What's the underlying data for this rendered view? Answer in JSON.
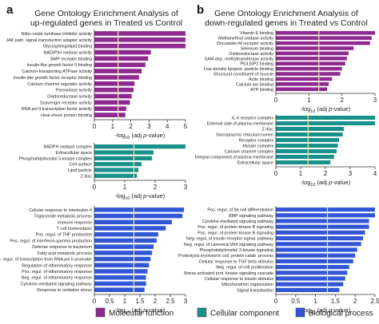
{
  "colors": {
    "molecular": "#8e2a8f",
    "cellular": "#18918a",
    "biological": "#3257d6",
    "threshold": "#f1e6a6"
  },
  "panel_labels": [
    "a",
    "b"
  ],
  "titles": {
    "a": [
      "Gene Ontology Enrichment Analysis of",
      "up-regulated genes in Treated vs Control"
    ],
    "b": [
      "Gene Ontology Enrichment Analysis of",
      "down-regulated genes in Treated vs Control"
    ]
  },
  "xlabel_text": "-log",
  "xlabel_sub": "10",
  "xlabel_tail": " (adj ",
  "xlabel_p": "p",
  "xlabel_end": "-value)",
  "legend": [
    {
      "label": "Molecular function",
      "color": "#8e2a8f"
    },
    {
      "label": "Cellular component",
      "color": "#18918a"
    },
    {
      "label": "Biological process",
      "color": "#3257d6"
    }
  ],
  "chart_data": [
    {
      "type": "bar",
      "panel": "a",
      "group": "Molecular function",
      "color": "#8e2a8f",
      "xlim": [
        0,
        5
      ],
      "ticks": [
        0,
        1,
        2,
        3,
        4,
        5
      ],
      "threshold": 1.3,
      "categories": [
        "Nitric-oxide synthase inhibitor activity",
        "JAK path. signal transduction adaptor activity",
        "Glycosphingolipid binding",
        "NAD(P)H oxidase activity",
        "BMP receptor binding",
        "Insulin-like growth factor II binding",
        "Calcium-transporting ATPase activity",
        "Insulin-like growth factor receptor binding",
        "Calcium channel regulator activity",
        "Peroxidase activity",
        "Oxidoreductase activity",
        "Scavenger receptor activity",
        "RNA pol II transcription factor activity",
        "Heat shock protein binding"
      ],
      "values": [
        5.0,
        5.0,
        5.0,
        3.1,
        2.95,
        2.8,
        2.6,
        2.45,
        2.2,
        2.15,
        2.05,
        1.95,
        1.75,
        1.7
      ]
    },
    {
      "type": "bar",
      "panel": "a",
      "group": "Cellular component",
      "color": "#18918a",
      "xlim": [
        0,
        3
      ],
      "ticks": [
        0,
        1,
        2,
        3
      ],
      "threshold": 1.3,
      "categories": [
        "NADPH oxidase complex",
        "Extracellular space",
        "Phosphatidylinositol 3-kinase complex",
        "Cell surface",
        "Lipid particle",
        "Z disc"
      ],
      "values": [
        3.0,
        1.95,
        1.9,
        1.55,
        1.45,
        1.4
      ]
    },
    {
      "type": "bar",
      "panel": "a",
      "group": "Biological process",
      "color": "#3257d6",
      "xlim": [
        0,
        3
      ],
      "ticks": [
        0,
        0.5,
        1,
        1.5,
        2,
        2.5,
        3
      ],
      "threshold": 1.3,
      "categories": [
        "Cellular response to interleukin-4",
        "Triglyceride metabolic process",
        "Immune response",
        "T cell homeostasis",
        "Pos. regul. of TNF production",
        "Pos. regul. of interferon-gamma production",
        "Defense response to bacterium",
        "Fatty acid metabolic process",
        "Neg. regul. of transcription from RNA pol II promoter",
        "Regulation of inflammatory response",
        "Pos. regul. of inflammatory response",
        "Neg. regul. of inflammatory response",
        "Cytokine-mediated signaling pathway",
        "Response to oxidative stress"
      ],
      "values": [
        2.95,
        2.9,
        2.55,
        2.35,
        2.1,
        2.05,
        1.95,
        1.9,
        1.85,
        1.8,
        1.75,
        1.7,
        1.7,
        1.65
      ]
    },
    {
      "type": "bar",
      "panel": "b",
      "group": "Molecular function",
      "color": "#8e2a8f",
      "xlim": [
        0,
        3
      ],
      "ticks": [
        0,
        1,
        2,
        3
      ],
      "threshold": 1.3,
      "categories": [
        "Vitamin E binding",
        "Methanethiol oxidase activity",
        "Oncostatin-M receptor activity",
        "Selenium binding",
        "Oxidoreductase activity",
        "SAM-dep. methyltransferase activity",
        "PI(4,5)P2 binding",
        "Low-density lipoprot. particle binding",
        "Structural constituent of muscle",
        "Actin binding",
        "Calcium ion binding",
        "ATP binding"
      ],
      "values": [
        3.0,
        2.9,
        2.85,
        2.35,
        2.2,
        2.15,
        2.1,
        2.0,
        1.95,
        1.7,
        1.6,
        1.55
      ]
    },
    {
      "type": "bar",
      "panel": "b",
      "group": "Cellular component",
      "color": "#18918a",
      "xlim": [
        0,
        4
      ],
      "ticks": [
        0,
        1,
        2,
        3,
        4
      ],
      "threshold": 1.3,
      "categories": [
        "IL-6 receptor complex",
        "External side of plasma membrane",
        "Z disc",
        "Sarcoplasmic reticulum lumen",
        "Receptor complex",
        "Myosin complex",
        "Calcium channel complex",
        "Integral component of plasma membrane",
        "Extracellular space"
      ],
      "values": [
        4.0,
        4.0,
        2.75,
        2.7,
        2.55,
        2.5,
        2.45,
        2.35,
        2.2
      ]
    },
    {
      "type": "bar",
      "panel": "b",
      "group": "Biological process",
      "color": "#3257d6",
      "xlim": [
        0,
        2.5
      ],
      "ticks": [
        0,
        0.5,
        1,
        1.5,
        2,
        2.5
      ],
      "threshold": 1.3,
      "categories": [
        "Pos. regul. of fat cell differentiation",
        "BMP signaling pathway",
        "Cytokine-mediated signaling pathway",
        "Pos. regul. of protein kinase B signaling",
        "Pos. regul. of protein kinase B signaling",
        "Neg. regul. of insulin receptor signal. pathway",
        "Neg. regul. of canonical Wnt signaling pathway",
        "Phosphatidylinositol 3-kinase signaling",
        "Proteolysis involved in cell. protein catab. process",
        "Cellular response to TGF beta stimulus",
        "Neg. regul. of cell proliferation",
        "Stress-activated prot. kinase signaling cascade",
        "Cellular response to insulin stimulus",
        "Mitochondrion organization",
        "Signal transduction"
      ],
      "values": [
        2.5,
        2.5,
        2.35,
        2.35,
        2.25,
        2.2,
        2.15,
        2.05,
        2.0,
        1.95,
        1.85,
        1.8,
        1.75,
        1.7,
        1.6
      ]
    }
  ]
}
